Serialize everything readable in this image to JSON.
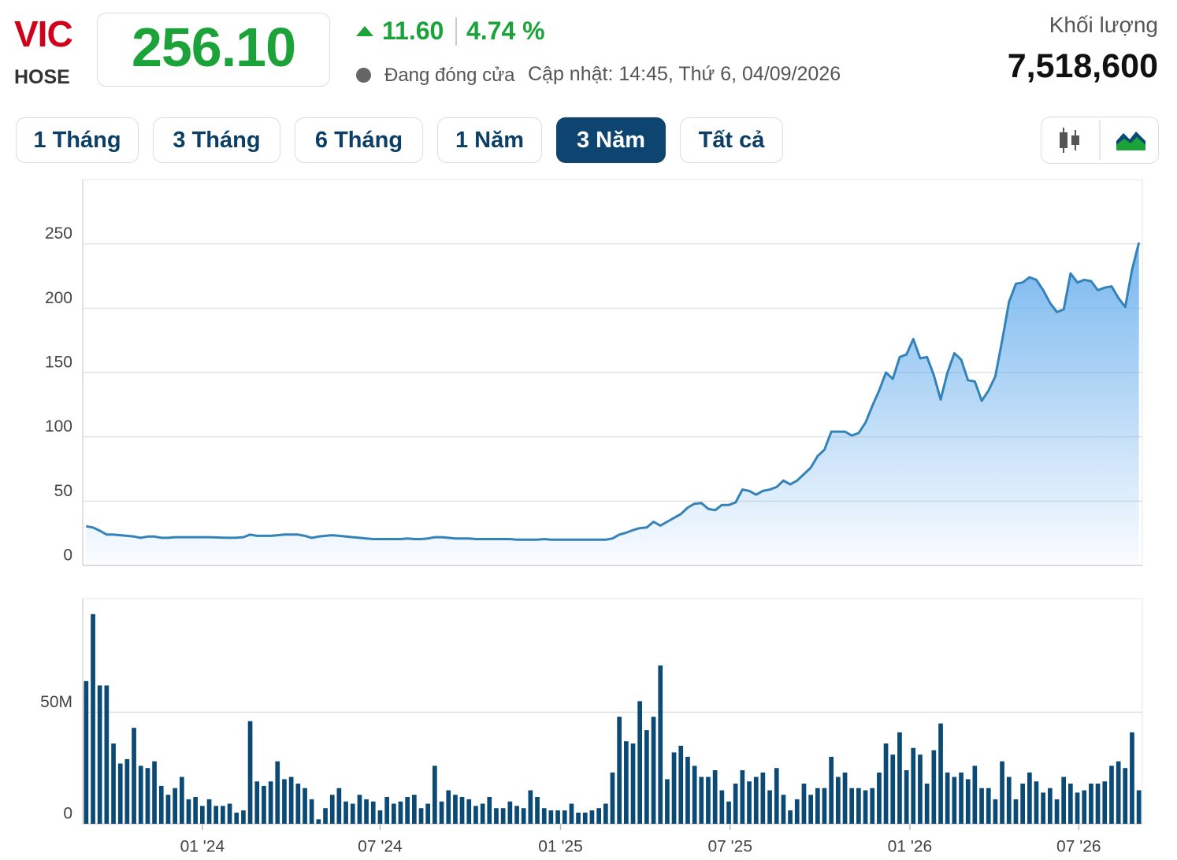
{
  "header": {
    "symbol": "VIC",
    "exchange": "HOSE",
    "price": "256.10",
    "change": "11.60",
    "change_percent": "4.74 %",
    "status": "Đang đóng cửa",
    "updated": "Cập nhật: 14:45, Thứ 6, 04/09/2026",
    "volume_label": "Khối lượng",
    "volume": "7,518,600"
  },
  "range_buttons": [
    "1 Tháng",
    "3 Tháng",
    "6 Tháng",
    "1 Năm",
    "3 Năm",
    "Tất cả"
  ],
  "chart_data": [
    {
      "type": "area",
      "color": "#3483b8",
      "fill_color": "#6fb2ee",
      "grid": true,
      "xlim": [
        0,
        155
      ],
      "ylim": [
        0,
        300
      ],
      "yticks": [
        0,
        50,
        100,
        150,
        200,
        250
      ],
      "values": [
        30.5,
        29.5,
        27,
        24,
        24,
        23.5,
        23,
        22.5,
        21.5,
        22.5,
        22.5,
        21.5,
        21.5,
        22,
        22,
        22,
        22,
        22,
        22,
        21.8,
        21.6,
        21.5,
        21.6,
        22,
        24,
        23,
        23,
        23,
        23.5,
        24,
        24,
        24,
        23,
        21.5,
        22.5,
        23,
        23.5,
        23,
        22.5,
        22,
        21.5,
        21,
        20.5,
        20.5,
        20.5,
        20.5,
        20.5,
        21,
        20.5,
        20.5,
        21,
        22,
        22,
        21.5,
        21,
        21,
        21,
        20.5,
        20.5,
        20.5,
        20.5,
        20.5,
        20.5,
        20,
        20,
        20,
        20,
        20.5,
        20,
        20,
        20,
        20,
        20,
        20,
        20,
        20,
        20,
        21,
        24,
        25.5,
        27.5,
        29,
        29.5,
        34,
        31,
        34,
        37,
        40,
        45,
        48,
        48.5,
        44,
        43,
        47,
        47,
        49,
        59,
        58,
        55,
        58,
        59,
        61,
        66,
        63,
        66,
        71,
        76,
        85,
        90,
        104,
        104,
        104,
        101,
        103,
        111,
        124,
        136,
        150,
        145,
        162,
        164,
        176,
        161,
        162,
        148,
        129,
        150,
        165,
        160,
        144,
        143,
        128,
        136,
        147,
        175,
        205,
        219,
        220,
        224,
        222,
        214,
        204,
        197,
        199,
        227,
        220,
        222,
        221,
        214,
        216,
        217,
        208,
        201,
        230,
        251
      ]
    },
    {
      "type": "bar",
      "color": "#0b4a75",
      "grid": true,
      "xlim": [
        0,
        155
      ],
      "ylim": [
        0,
        101
      ],
      "yticks": [
        0,
        {
          "value": 50,
          "label": "50M"
        }
      ],
      "xticks": [
        {
          "value": 17.5,
          "label": "01 '24"
        },
        {
          "value": 43.5,
          "label": "07 '24"
        },
        {
          "value": 69.9,
          "label": "01 '25"
        },
        {
          "value": 94.7,
          "label": "07 '25"
        },
        {
          "value": 121,
          "label": "01 '26"
        },
        {
          "value": 145.7,
          "label": "07 '26"
        }
      ],
      "values": [
        64,
        94,
        62,
        62,
        36,
        27,
        29,
        43,
        26,
        25,
        28,
        17,
        13,
        16,
        21,
        11,
        12,
        8,
        11,
        8,
        8,
        9,
        5,
        6,
        46,
        19,
        17,
        19,
        28,
        20,
        21,
        18,
        16,
        11,
        2,
        7,
        13,
        16,
        10,
        9,
        13,
        11,
        10,
        6,
        12,
        9,
        10,
        12,
        13,
        7,
        9,
        26,
        10,
        15,
        13,
        12,
        11,
        8,
        9,
        12,
        7,
        7,
        10,
        8,
        7,
        15,
        12,
        7,
        6,
        6,
        6,
        9,
        5,
        5,
        6,
        7,
        9,
        23,
        48,
        37,
        36,
        55,
        42,
        48,
        71,
        20,
        32,
        35,
        30,
        26,
        21,
        21,
        24,
        15,
        10,
        18,
        24,
        19,
        21,
        23,
        15,
        25,
        13,
        6,
        11,
        18,
        13,
        16,
        16,
        30,
        21,
        23,
        16,
        16,
        15,
        16,
        23,
        36,
        31,
        41,
        24,
        34,
        31,
        18,
        33,
        45,
        23,
        21,
        23,
        20,
        26,
        16,
        16,
        11,
        28,
        21,
        11,
        18,
        23,
        19,
        14,
        16,
        11,
        21,
        18,
        14,
        15,
        18,
        18,
        19,
        26,
        28,
        25,
        41,
        15
      ]
    }
  ]
}
